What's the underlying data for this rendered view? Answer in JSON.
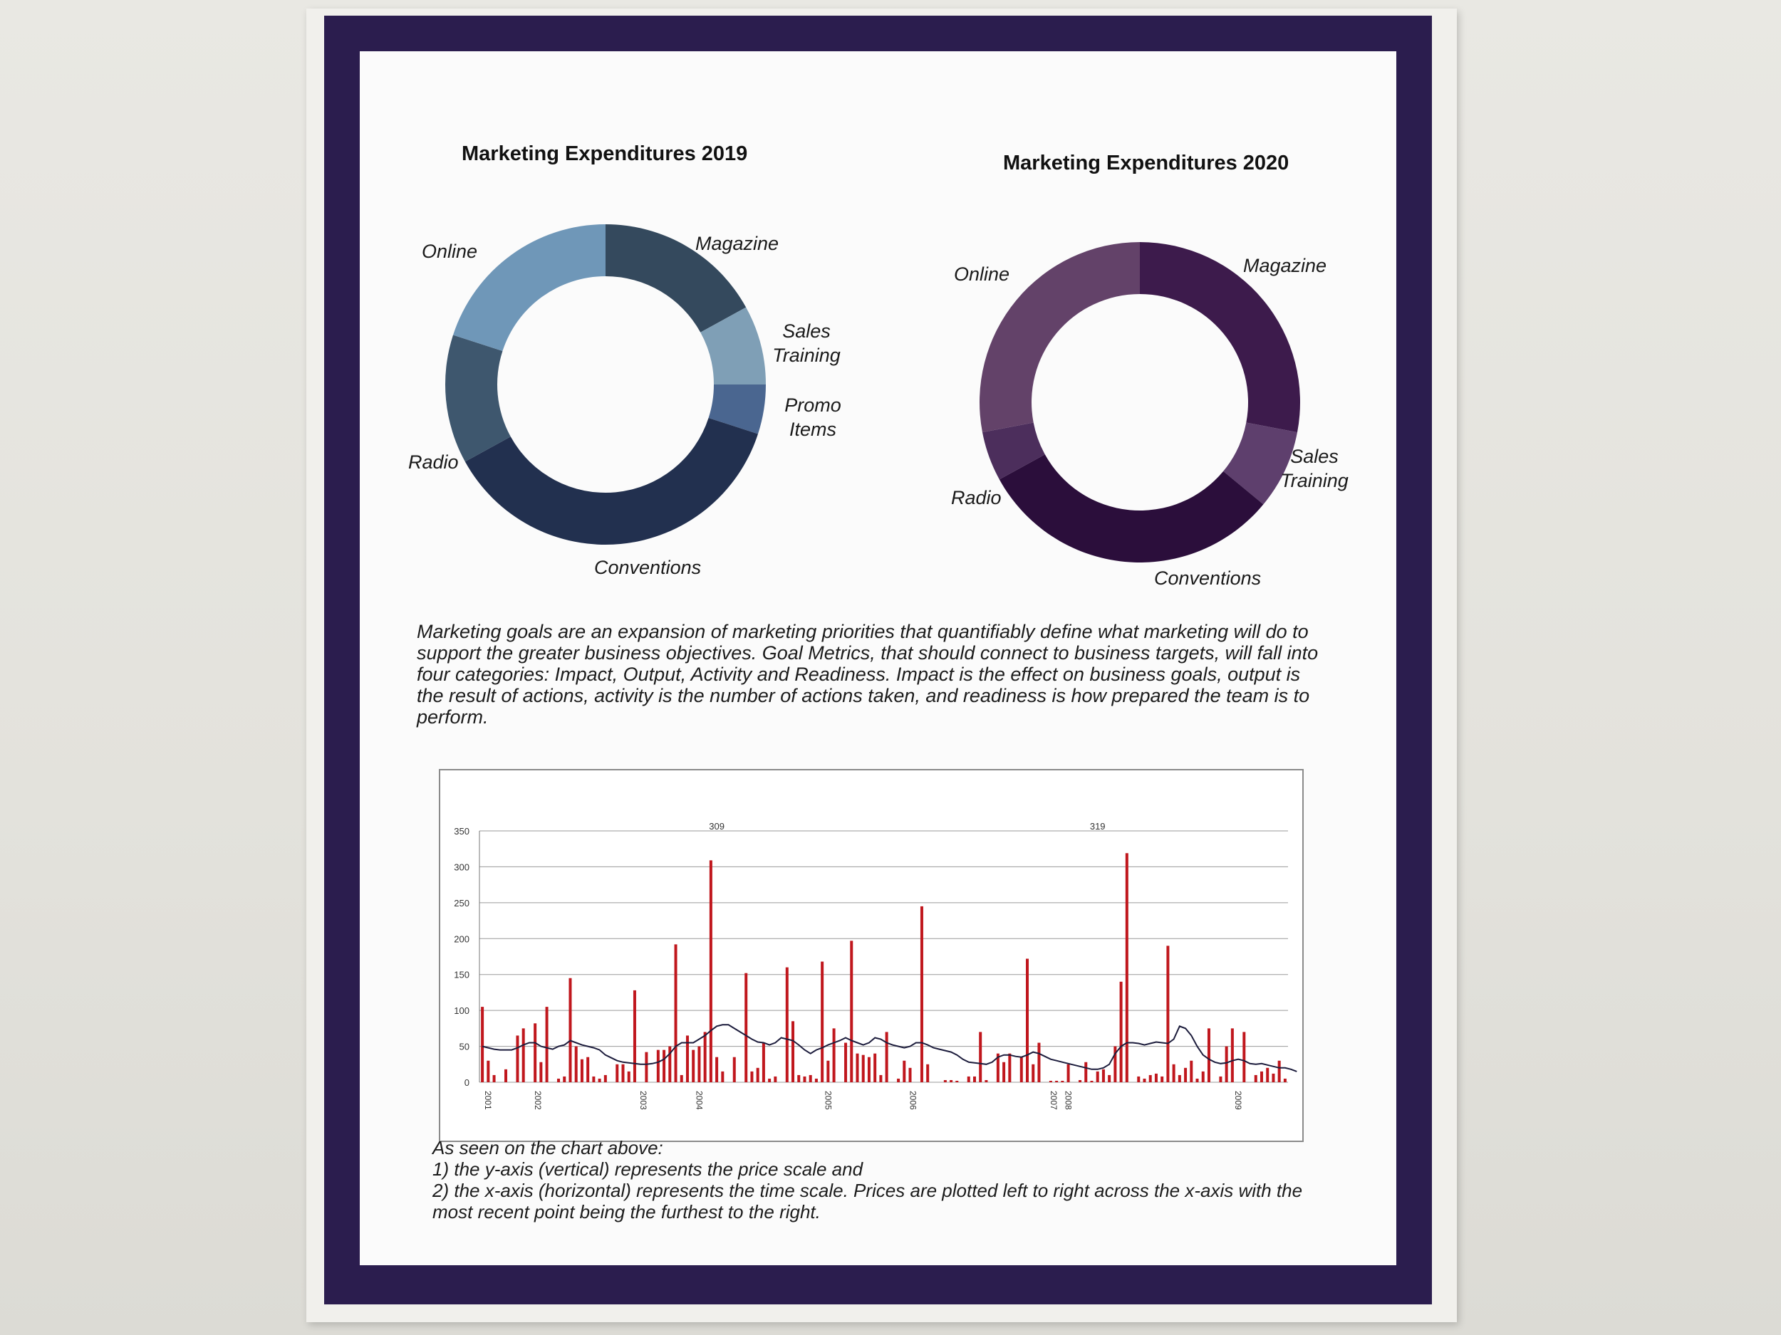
{
  "chart_data": [
    {
      "type": "pie",
      "title": "Marketing Expenditures 2019",
      "categories": [
        "Magazine",
        "Sales Training",
        "Promo Items",
        "Conventions",
        "Radio",
        "Online"
      ],
      "values": [
        17,
        8,
        5,
        37,
        13,
        20
      ],
      "colors": [
        "#34495d",
        "#7f9fb6",
        "#4a6690",
        "#22304f",
        "#3e576e",
        "#6f97b8"
      ],
      "labels": [
        "Magazine",
        "Sales Training",
        "Promo Items",
        "Conventions",
        "Radio",
        "Online"
      ]
    },
    {
      "type": "pie",
      "title": "Marketing Expenditures 2020",
      "categories": [
        "Magazine",
        "Sales Training",
        "Conventions",
        "Radio",
        "Online"
      ],
      "values": [
        28,
        8,
        31,
        5,
        28
      ],
      "colors": [
        "#3d1b4c",
        "#5e3f6d",
        "#2b0e3b",
        "#4c2e5c",
        "#634269"
      ],
      "labels": [
        "Magazine",
        "Sales Training",
        "Conventions",
        "Radio",
        "Online"
      ]
    },
    {
      "type": "bar",
      "title": "",
      "xlabel": "",
      "ylabel": "",
      "ylim": [
        0,
        350
      ],
      "yticks": [
        0,
        50,
        100,
        150,
        200,
        250,
        300,
        350
      ],
      "xtick_labels": [
        "2001",
        "2002",
        "2003",
        "2004",
        "2005",
        "2006",
        "2007",
        "2008",
        "2009"
      ],
      "xtick_positions": [
        0.5,
        9,
        27,
        36.5,
        58.5,
        73,
        97,
        99.5,
        128.5
      ],
      "annotations": [
        {
          "x": 40,
          "text": "309"
        },
        {
          "x": 105,
          "text": "319"
        }
      ],
      "series": [
        {
          "type": "bar",
          "color": "#c0171d",
          "values": [
            105,
            30,
            10,
            0,
            18,
            0,
            65,
            75,
            0,
            82,
            28,
            105,
            0,
            5,
            8,
            145,
            50,
            32,
            35,
            8,
            5,
            10,
            0,
            25,
            25,
            15,
            128,
            0,
            42,
            0,
            45,
            45,
            50,
            192,
            10,
            65,
            45,
            50,
            70,
            309,
            35,
            15,
            0,
            35,
            0,
            152,
            15,
            20,
            55,
            5,
            8,
            0,
            160,
            85,
            10,
            8,
            10,
            5,
            168,
            30,
            75,
            0,
            55,
            197,
            40,
            38,
            35,
            40,
            10,
            70,
            0,
            5,
            30,
            20,
            0,
            245,
            25,
            0,
            0,
            3,
            3,
            2,
            0,
            8,
            8,
            70,
            3,
            0,
            40,
            28,
            40,
            0,
            35,
            172,
            25,
            55,
            0,
            2,
            2,
            2,
            25,
            0,
            3,
            28,
            2,
            15,
            18,
            10,
            50,
            140,
            319,
            0,
            8,
            5,
            10,
            12,
            8,
            190,
            25,
            10,
            20,
            30,
            5,
            15,
            75,
            0,
            8,
            50,
            75,
            0,
            70,
            0,
            10,
            15,
            20,
            12,
            30,
            5
          ]
        },
        {
          "type": "line",
          "color": "#1c1c3c",
          "name": "",
          "values": [
            50,
            48,
            46,
            45,
            45,
            45,
            48,
            52,
            55,
            55,
            50,
            48,
            46,
            50,
            52,
            58,
            55,
            52,
            50,
            48,
            45,
            38,
            34,
            30,
            28,
            27,
            26,
            25,
            25,
            26,
            28,
            32,
            40,
            50,
            55,
            55,
            55,
            60,
            65,
            72,
            78,
            80,
            80,
            75,
            70,
            65,
            60,
            56,
            55,
            52,
            55,
            62,
            60,
            58,
            52,
            45,
            40,
            45,
            48,
            52,
            55,
            58,
            62,
            58,
            55,
            52,
            55,
            62,
            60,
            55,
            52,
            50,
            48,
            50,
            55,
            55,
            52,
            48,
            46,
            44,
            42,
            38,
            32,
            28,
            27,
            26,
            25,
            28,
            35,
            38,
            38,
            36,
            35,
            38,
            42,
            40,
            36,
            32,
            30,
            28,
            26,
            24,
            22,
            20,
            18,
            18,
            20,
            25,
            40,
            50,
            55,
            55,
            54,
            52,
            54,
            56,
            55,
            54,
            60,
            78,
            75,
            65,
            50,
            38,
            32,
            28,
            26,
            27,
            30,
            32,
            30,
            26,
            25,
            26,
            24,
            22,
            20,
            20,
            18,
            15
          ]
        }
      ]
    }
  ],
  "paragraph": "Marketing goals are an expansion of marketing priorities that quantifiably define what marketing will do to support the greater business objectives. Goal Metrics, that should connect to business targets, will fall into four categories: Impact, Output, Activity and Readiness. Impact is the effect on business goals, output is the result of actions, activity is the number of actions taken, and readiness is how prepared the team is to perform.",
  "note": {
    "line1": "As seen on the chart above:",
    "line2": "1) the y-axis (vertical) represents the price scale and",
    "line3": "2) the x-axis (horizontal) represents the time scale. Prices are plotted left to right across the x-axis with the most recent point being the furthest to the right."
  }
}
